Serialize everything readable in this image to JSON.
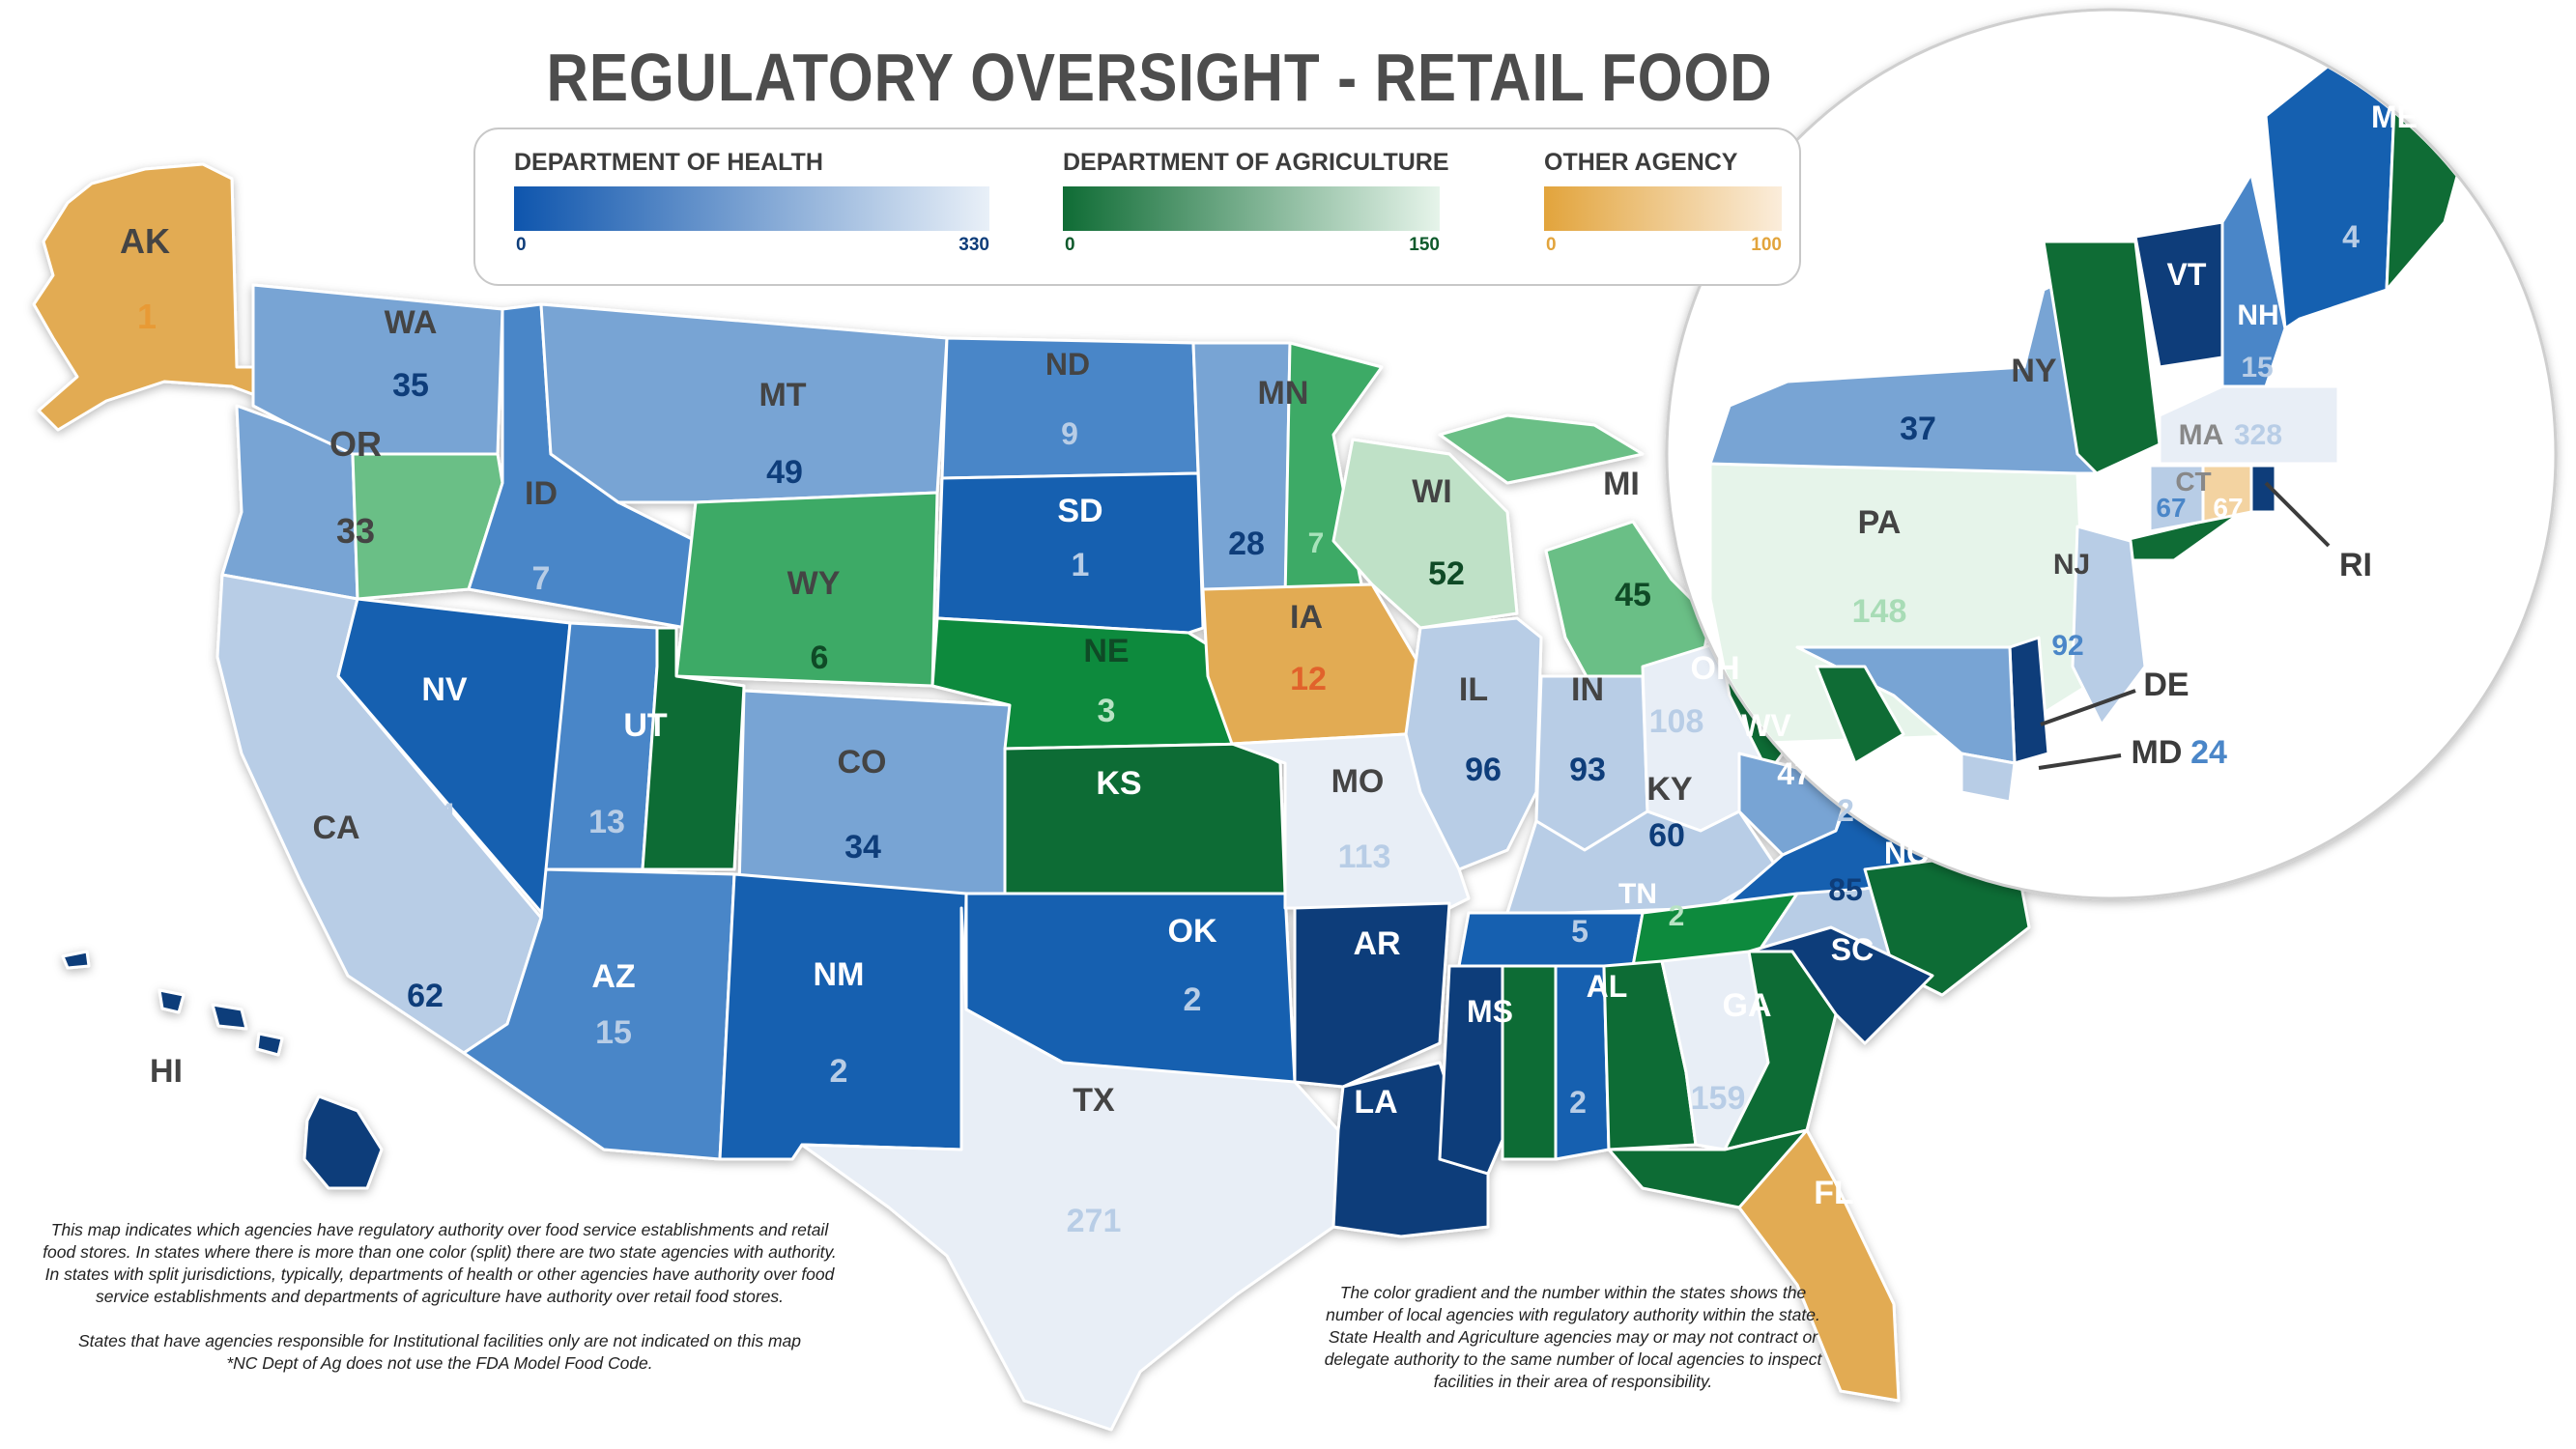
{
  "title": "REGULATORY OVERSIGHT - RETAIL FOOD",
  "legend": {
    "health": {
      "title": "DEPARTMENT OF HEALTH",
      "min": "0",
      "max": "330",
      "color_dark": "#0e55ad",
      "color_light": "#e9f0f8"
    },
    "agriculture": {
      "title": "DEPARTMENT OF AGRICULTURE",
      "min": "0",
      "max": "150",
      "color_dark": "#0f6c35",
      "color_light": "#e6f4ea"
    },
    "other": {
      "title": "OTHER AGENCY",
      "min": "0",
      "max": "100",
      "color_dark": "#e2a43c",
      "color_light": "#fbeddb"
    }
  },
  "states": [
    {
      "code": "AK",
      "value": "1"
    },
    {
      "code": "HI",
      "value": ""
    },
    {
      "code": "WA",
      "value": "35"
    },
    {
      "code": "OR",
      "value": "33"
    },
    {
      "code": "CA",
      "value": "62"
    },
    {
      "code": "ID",
      "value": "7"
    },
    {
      "code": "NV",
      "value": "4"
    },
    {
      "code": "MT",
      "value": "49"
    },
    {
      "code": "WY",
      "value": "6"
    },
    {
      "code": "UT",
      "value": "13"
    },
    {
      "code": "AZ",
      "value": "15"
    },
    {
      "code": "CO",
      "value": "34"
    },
    {
      "code": "NM",
      "value": "2"
    },
    {
      "code": "ND",
      "value": "9"
    },
    {
      "code": "SD",
      "value": "1"
    },
    {
      "code": "NE",
      "value": "3"
    },
    {
      "code": "KS",
      "value": "KS"
    },
    {
      "code": "OK",
      "value": "2"
    },
    {
      "code": "TX",
      "value": "271"
    },
    {
      "code": "MN",
      "value": "28"
    },
    {
      "code": "MN-AG",
      "value": "7"
    },
    {
      "code": "IA",
      "value": "12"
    },
    {
      "code": "MO",
      "value": "113"
    },
    {
      "code": "AR",
      "value": ""
    },
    {
      "code": "LA",
      "value": ""
    },
    {
      "code": "WI",
      "value": "52"
    },
    {
      "code": "IL",
      "value": "96"
    },
    {
      "code": "MI",
      "value": "45"
    },
    {
      "code": "IN",
      "value": "93"
    },
    {
      "code": "OH",
      "value": "108"
    },
    {
      "code": "KY",
      "value": "60"
    },
    {
      "code": "TN",
      "value": "5"
    },
    {
      "code": "TN-AG",
      "value": "2"
    },
    {
      "code": "MS",
      "value": ""
    },
    {
      "code": "AL",
      "value": "2"
    },
    {
      "code": "GA",
      "value": "159"
    },
    {
      "code": "FL",
      "value": ""
    },
    {
      "code": "SC",
      "value": ""
    },
    {
      "code": "NC",
      "value": "85"
    },
    {
      "code": "VA",
      "value": "2"
    },
    {
      "code": "WV",
      "value": "47"
    },
    {
      "code": "PA",
      "value": "148"
    },
    {
      "code": "NY",
      "value": "37"
    },
    {
      "code": "VT",
      "value": ""
    },
    {
      "code": "NH",
      "value": "15"
    },
    {
      "code": "ME",
      "value": "4"
    },
    {
      "code": "MA",
      "value": "328"
    },
    {
      "code": "CT",
      "value": "67"
    },
    {
      "code": "CT-OT",
      "value": "67"
    },
    {
      "code": "RI",
      "value": ""
    },
    {
      "code": "NJ",
      "value": "92"
    },
    {
      "code": "DE",
      "value": ""
    },
    {
      "code": "MD",
      "value": "24"
    }
  ],
  "notes": {
    "left_1": "This map indicates which agencies have regulatory authority over food service establishments and retail food stores. In states where there is more than one color (split) there are two state agencies with authority. In states with split jurisdictions, typically, departments of health or other agencies have authority over food service establishments and departments of agriculture have authority over retail food stores.",
    "left_2": "States that have agencies responsible for Institutional facilities only are not indicated on this map",
    "left_3": "*NC Dept of Ag does not use the FDA Model Food Code.",
    "right": "The color gradient and the number within the states shows the number of local agencies with regulatory authority within the state. State Health and Agriculture agencies may or may not contract or delegate authority to the same number of local agencies to inspect facilities in their area of responsibility."
  }
}
